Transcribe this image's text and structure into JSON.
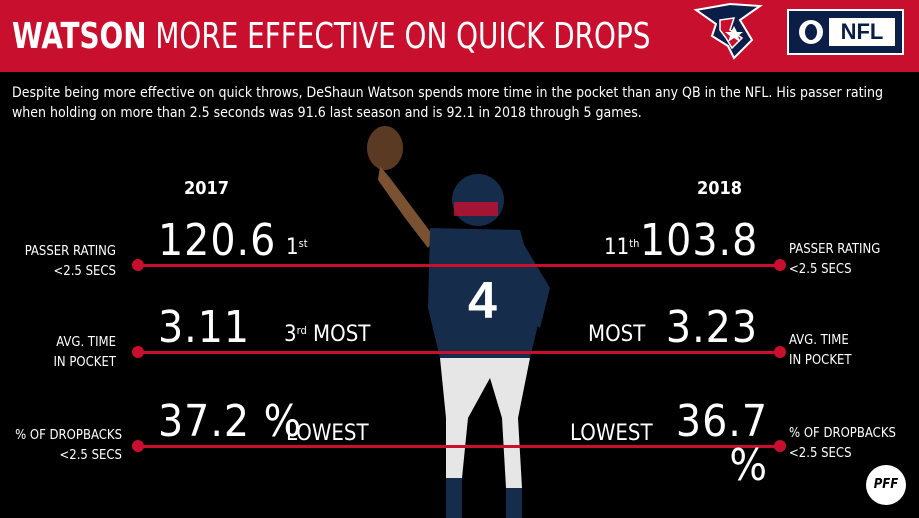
{
  "header": {
    "title_bold": "WATSON",
    "title_rest": " MORE EFFECTIVE ON QUICK DROPS",
    "brand_red": "#c8102e",
    "nfl_label": "NFL"
  },
  "description": "Despite being more effective on quick throws, DeShaun Watson spends more time in the pocket than any QB in the NFL.  His passer rating when holding on more than 2.5 seconds was  91.6 last season and is 92.1 in 2018 through 5 games.",
  "years": {
    "left": "2017",
    "right": "2018"
  },
  "stats": {
    "rating": {
      "label_l1": "PASSER RATING",
      "label_l2": "<2.5 SECS",
      "v2017": "120.6",
      "rank2017": "1",
      "rank2017_sup": "st",
      "v2018": "103.8",
      "rank2018": "11",
      "rank2018_sup": "th"
    },
    "time": {
      "label_l1": "AVG. TIME",
      "label_l2": "IN POCKET",
      "v2017": "3.11",
      "rank2017": "3",
      "rank2017_sup": "rd",
      "rank2017_rest": " MOST",
      "v2018": "3.23",
      "rank2018": "MOST"
    },
    "drop": {
      "label_l1": "% OF DROPBACKS",
      "label_l2": "<2.5 SECS",
      "v2017": "37.2 %",
      "rank2017": "LOWEST",
      "v2018": "36.7 %",
      "rank2018": "LOWEST"
    }
  },
  "footer": {
    "pff": "PFF"
  }
}
